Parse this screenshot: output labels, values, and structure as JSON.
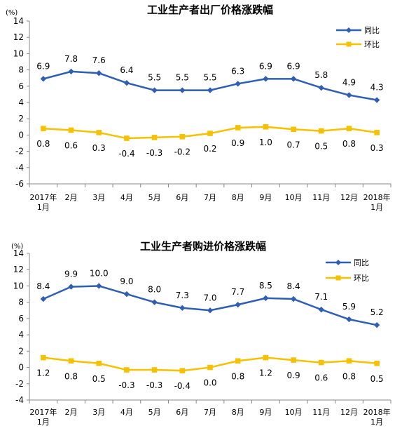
{
  "chart_data": [
    {
      "type": "line",
      "title": "工业生产者出厂价格涨跌幅",
      "unit": "(%)",
      "categories": [
        [
          "2017年",
          "1月"
        ],
        [
          "2月"
        ],
        [
          "3月"
        ],
        [
          "4月"
        ],
        [
          "5月"
        ],
        [
          "6月"
        ],
        [
          "7月"
        ],
        [
          "8月"
        ],
        [
          "9月"
        ],
        [
          "10月"
        ],
        [
          "11月"
        ],
        [
          "12月"
        ],
        [
          "2018年",
          "1月"
        ]
      ],
      "ylim": [
        -6,
        14
      ],
      "yticks": [
        14,
        12,
        10,
        8,
        6,
        4,
        2,
        0,
        -2,
        -4,
        -6
      ],
      "legend_position": "top-right",
      "series": [
        {
          "name": "同比",
          "color": "#2E5FB5",
          "marker": "diamond",
          "label_position": "above",
          "values": [
            6.9,
            7.8,
            7.6,
            6.4,
            5.5,
            5.5,
            5.5,
            6.3,
            6.9,
            6.9,
            5.8,
            4.9,
            4.3
          ],
          "labels": [
            "6.9",
            "7.8",
            "7.6",
            "6.4",
            "5.5",
            "5.5",
            "5.5",
            "6.3",
            "6.9",
            "6.9",
            "5.8",
            "4.9",
            "4.3"
          ]
        },
        {
          "name": "环比",
          "color": "#F5C100",
          "marker": "square",
          "label_position": "below",
          "values": [
            0.8,
            0.6,
            0.3,
            -0.4,
            -0.3,
            -0.2,
            0.2,
            0.9,
            1.0,
            0.7,
            0.5,
            0.8,
            0.3
          ],
          "labels": [
            "0.8",
            "0.6",
            "0.3",
            "-0.4",
            "-0.3",
            "-0.2",
            "0.2",
            "0.9",
            "1.0",
            "0.7",
            "0.5",
            "0.8",
            "0.3"
          ]
        }
      ]
    },
    {
      "type": "line",
      "title": "工业生产者购进价格涨跌幅",
      "unit": "(%)",
      "categories": [
        [
          "2017年",
          "1月"
        ],
        [
          "2月"
        ],
        [
          "3月"
        ],
        [
          "4月"
        ],
        [
          "5月"
        ],
        [
          "6月"
        ],
        [
          "7月"
        ],
        [
          "8月"
        ],
        [
          "9月"
        ],
        [
          "10月"
        ],
        [
          "11月"
        ],
        [
          "12月"
        ],
        [
          "2018年",
          "1月"
        ]
      ],
      "ylim": [
        -4,
        14
      ],
      "yticks": [
        14,
        12,
        10,
        8,
        6,
        4,
        2,
        0,
        -2,
        -4
      ],
      "legend_position": "top-right",
      "series": [
        {
          "name": "同比",
          "color": "#2E5FB5",
          "marker": "diamond",
          "label_position": "above",
          "values": [
            8.4,
            9.9,
            10.0,
            9.0,
            8.0,
            7.3,
            7.0,
            7.7,
            8.5,
            8.4,
            7.1,
            5.9,
            5.2
          ],
          "labels": [
            "8.4",
            "9.9",
            "10.0",
            "9.0",
            "8.0",
            "7.3",
            "7.0",
            "7.7",
            "8.5",
            "8.4",
            "7.1",
            "5.9",
            "5.2"
          ]
        },
        {
          "name": "环比",
          "color": "#F5C100",
          "marker": "square",
          "label_position": "below",
          "values": [
            1.2,
            0.8,
            0.5,
            -0.3,
            -0.3,
            -0.4,
            0.0,
            0.8,
            1.2,
            0.9,
            0.6,
            0.8,
            0.5
          ],
          "labels": [
            "1.2",
            "0.8",
            "0.5",
            "-0.3",
            "-0.3",
            "-0.4",
            "0.0",
            "0.8",
            "1.2",
            "0.9",
            "0.6",
            "0.8",
            "0.5"
          ]
        }
      ]
    }
  ]
}
